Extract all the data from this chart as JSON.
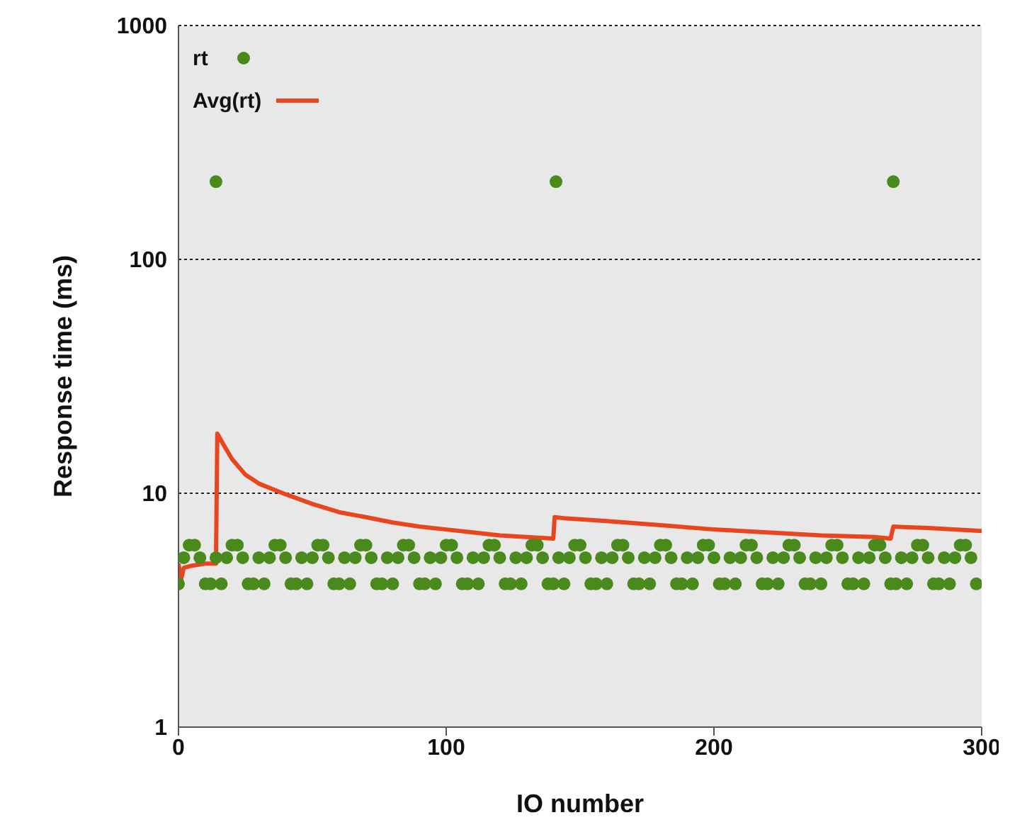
{
  "chart_data": {
    "type": "scatter",
    "xlabel": "IO number",
    "ylabel": "Response time (ms)",
    "log": "y",
    "xlim": [
      0,
      300
    ],
    "xticks": [
      0,
      100,
      200,
      300
    ],
    "ylim": [
      1,
      1000
    ],
    "yticks": [
      1,
      10,
      100,
      1000
    ],
    "grid": "y",
    "legend": "top left",
    "marker": "circle",
    "series": [
      {
        "name": "rt",
        "color": "#4a8a1c",
        "x": [
          0,
          2,
          4,
          6,
          8,
          10,
          12,
          14,
          16,
          18,
          20,
          22,
          24,
          26,
          28,
          30,
          32,
          34,
          36,
          38,
          40,
          42,
          44,
          46,
          48,
          50,
          52,
          54,
          56,
          58,
          60,
          62,
          64,
          66,
          68,
          70,
          72,
          74,
          76,
          78,
          80,
          82,
          84,
          86,
          88,
          90,
          92,
          94,
          96,
          98,
          100,
          102,
          104,
          106,
          108,
          110,
          112,
          114,
          116,
          118,
          120,
          122,
          124,
          126,
          128,
          130,
          132,
          134,
          136,
          138,
          140,
          142,
          144,
          146,
          148,
          150,
          152,
          154,
          156,
          158,
          160,
          162,
          164,
          166,
          168,
          170,
          172,
          174,
          176,
          178,
          180,
          182,
          184,
          186,
          188,
          190,
          192,
          194,
          196,
          198,
          200,
          202,
          204,
          206,
          208,
          210,
          212,
          214,
          216,
          218,
          220,
          222,
          224,
          226,
          228,
          230,
          232,
          234,
          236,
          238,
          240,
          242,
          244,
          246,
          248,
          250,
          252,
          254,
          256,
          258,
          260,
          262,
          264,
          266,
          268,
          270,
          272,
          274,
          276,
          278,
          280,
          282,
          284,
          286,
          288,
          290,
          292,
          294,
          296,
          298,
          14,
          141,
          267
        ],
        "values": [
          4.1,
          5.3,
          6,
          6,
          5.3,
          4.1,
          4.1,
          5.3,
          4.1,
          5.3,
          6,
          6,
          5.3,
          4.1,
          4.1,
          5.3,
          4.1,
          5.3,
          6,
          6,
          5.3,
          4.1,
          4.1,
          5.3,
          4.1,
          5.3,
          6,
          6,
          5.3,
          4.1,
          4.1,
          5.3,
          4.1,
          5.3,
          6,
          6,
          5.3,
          4.1,
          4.1,
          5.3,
          4.1,
          5.3,
          6,
          6,
          5.3,
          4.1,
          4.1,
          5.3,
          4.1,
          5.3,
          6,
          6,
          5.3,
          4.1,
          4.1,
          5.3,
          4.1,
          5.3,
          6,
          6,
          5.3,
          4.1,
          4.1,
          5.3,
          4.1,
          5.3,
          6,
          6,
          5.3,
          4.1,
          4.1,
          5.3,
          4.1,
          5.3,
          6,
          6,
          5.3,
          4.1,
          4.1,
          5.3,
          4.1,
          5.3,
          6,
          6,
          5.3,
          4.1,
          4.1,
          5.3,
          4.1,
          5.3,
          6,
          6,
          5.3,
          4.1,
          4.1,
          5.3,
          4.1,
          5.3,
          6,
          6,
          5.3,
          4.1,
          4.1,
          5.3,
          4.1,
          5.3,
          6,
          6,
          5.3,
          4.1,
          4.1,
          5.3,
          4.1,
          5.3,
          6,
          6,
          5.3,
          4.1,
          4.1,
          5.3,
          4.1,
          5.3,
          6,
          6,
          5.3,
          4.1,
          4.1,
          5.3,
          4.1,
          5.3,
          6,
          6,
          5.3,
          4.1,
          4.1,
          5.3,
          4.1,
          5.3,
          6,
          6,
          5.3,
          4.1,
          4.1,
          5.3,
          4.1,
          5.3,
          6,
          6,
          5.3,
          4.1,
          215,
          215,
          215
        ]
      },
      {
        "name": "Avg(rt)",
        "type": "line",
        "color": "#e8461e",
        "marker": "none",
        "x": [
          0,
          1,
          2,
          5,
          10,
          14,
          14.5,
          17,
          20,
          25,
          30,
          40,
          50,
          60,
          70,
          80,
          90,
          100,
          110,
          120,
          130,
          140,
          140.5,
          145,
          160,
          180,
          200,
          220,
          240,
          260,
          266,
          267,
          280,
          300
        ],
        "values": [
          5,
          4.3,
          4.8,
          4.9,
          5,
          5,
          18,
          16,
          14,
          12,
          11,
          9.9,
          9,
          8.3,
          7.9,
          7.5,
          7.2,
          7,
          6.8,
          6.6,
          6.5,
          6.4,
          7.9,
          7.8,
          7.6,
          7.3,
          7,
          6.8,
          6.6,
          6.5,
          6.4,
          7.2,
          7.1,
          6.9
        ]
      }
    ]
  }
}
